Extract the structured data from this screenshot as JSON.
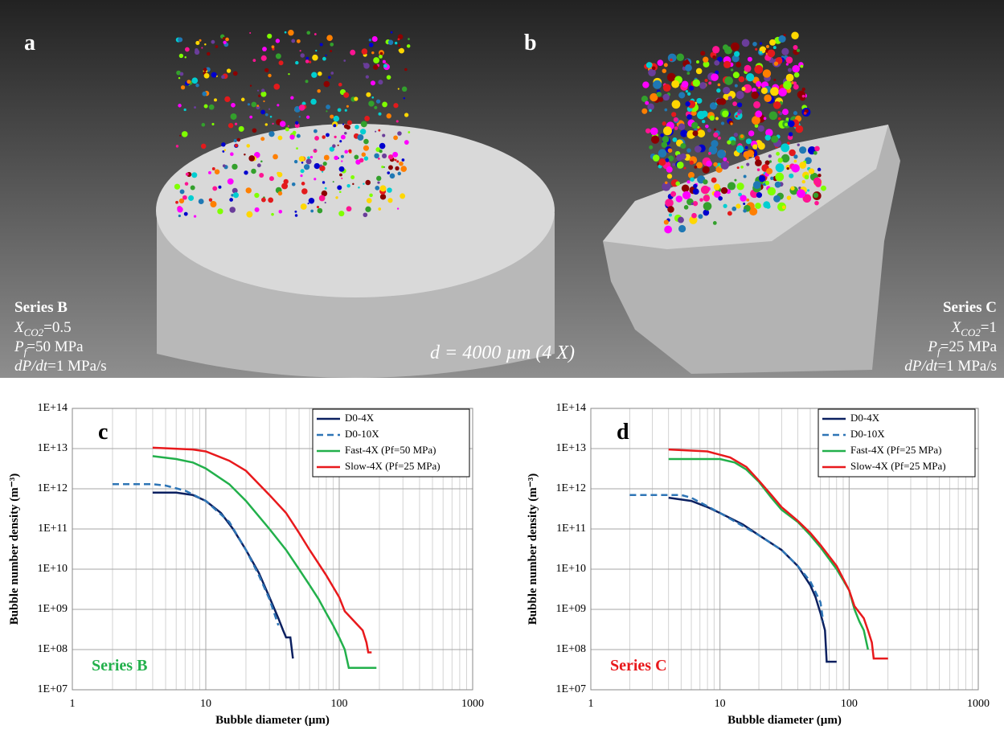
{
  "image_panel": {
    "left": {
      "letter": "a",
      "title": "Series B",
      "params": [
        {
          "symbol": "X",
          "sub": "CO2",
          "value": "=0.5"
        },
        {
          "symbol": "P",
          "sub": "f",
          "value": "=50 MPa"
        },
        {
          "symbol": "dP/dt",
          "value": "=1 MPa/s"
        }
      ]
    },
    "right": {
      "letter": "b",
      "title": "Series C",
      "params": [
        {
          "symbol": "X",
          "sub": "CO2",
          "value": "=1"
        },
        {
          "symbol": "P",
          "sub": "f",
          "value": "=25 MPa"
        },
        {
          "symbol": "dP/dt",
          "value": "=1 MPa/s"
        }
      ]
    },
    "caption": "d = 4000 µm (4 X)"
  },
  "chart_data": [
    {
      "type": "line",
      "panel_label": "c",
      "annotation": {
        "text": "Series B",
        "color": "#22b04b"
      },
      "xlabel": "Bubble diameter (µm)",
      "ylabel": "Bubble number density (m⁻³)",
      "log_x": true,
      "log_y": true,
      "grid": true,
      "legend": "upper right",
      "xlim": [
        1,
        1000
      ],
      "ylim": [
        10000000.0,
        100000000000000.0
      ],
      "xticks": [
        1,
        10,
        100,
        1000
      ],
      "xminorticks": [
        2,
        3,
        4,
        5,
        6,
        7,
        8,
        9,
        20,
        30,
        40,
        50,
        60,
        70,
        80,
        90,
        200,
        300,
        400,
        500,
        600,
        700,
        800,
        900
      ],
      "yticks": [
        {
          "value": 10000000.0,
          "label": "1E+07"
        },
        {
          "value": 100000000.0,
          "label": "1E+08"
        },
        {
          "value": 1000000000.0,
          "label": "1E+09"
        },
        {
          "value": 10000000000.0,
          "label": "1E+10"
        },
        {
          "value": 100000000000.0,
          "label": "1E+11"
        },
        {
          "value": 1000000000000.0,
          "label": "1E+12"
        },
        {
          "value": 10000000000000.0,
          "label": "1E+13"
        },
        {
          "value": 100000000000000.0,
          "label": "1E+14"
        }
      ],
      "series": [
        {
          "name": "D0-4X",
          "color": "#0b2060",
          "dash": false,
          "x": [
            4,
            6,
            8,
            10,
            13,
            16,
            20,
            25,
            30,
            35,
            38,
            40,
            43,
            45
          ],
          "values": [
            800000000000.0,
            800000000000.0,
            700000000000.0,
            500000000000.0,
            250000000000.0,
            100000000000.0,
            30000000000.0,
            8000000000.0,
            2000000000.0,
            600000000.0,
            300000000.0,
            200000000.0,
            200000000.0,
            60000000.0
          ]
        },
        {
          "name": "D0-10X",
          "color": "#2e75b6",
          "dash": true,
          "x": [
            2,
            4,
            5,
            7,
            10,
            15,
            20,
            25,
            30,
            35
          ],
          "values": [
            1300000000000.0,
            1300000000000.0,
            1200000000000.0,
            900000000000.0,
            500000000000.0,
            150000000000.0,
            30000000000.0,
            7000000000.0,
            1800000000.0,
            400000000.0
          ]
        },
        {
          "name": "Fast-4X (Pf=50 MPa)",
          "color": "#22b04b",
          "dash": false,
          "x": [
            4,
            6,
            8,
            10,
            15,
            20,
            30,
            40,
            50,
            60,
            70,
            80,
            90,
            100,
            110,
            118,
            190
          ],
          "values": [
            6500000000000.0,
            5500000000000.0,
            4500000000000.0,
            3200000000000.0,
            1300000000000.0,
            500000000000.0,
            100000000000.0,
            30000000000.0,
            10000000000.0,
            4000000000.0,
            1800000000.0,
            800000000.0,
            400000000.0,
            200000000.0,
            100000000.0,
            35000000.0,
            35000000.0
          ]
        },
        {
          "name": "Slow-4X (Pf=25 MPa)",
          "color": "#e8191c",
          "dash": false,
          "x": [
            4,
            8,
            10,
            15,
            20,
            30,
            40,
            50,
            60,
            80,
            100,
            110,
            130,
            150,
            160,
            165,
            175
          ],
          "values": [
            10500000000000.0,
            9500000000000.0,
            8500000000000.0,
            5000000000000.0,
            2800000000000.0,
            700000000000.0,
            250000000000.0,
            80000000000.0,
            30000000000.0,
            7000000000.0,
            2000000000.0,
            900000000.0,
            500000000.0,
            300000000.0,
            150000000.0,
            85000000.0,
            85000000.0
          ]
        }
      ]
    },
    {
      "type": "line",
      "panel_label": "d",
      "annotation": {
        "text": "Series C",
        "color": "#e8191c"
      },
      "xlabel": "Bubble diameter (µm)",
      "ylabel": "Bubble number density (m⁻³)",
      "log_x": true,
      "log_y": true,
      "grid": true,
      "legend": "upper right",
      "xlim": [
        1,
        1000
      ],
      "ylim": [
        10000000.0,
        100000000000000.0
      ],
      "xticks": [
        1,
        10,
        100,
        1000
      ],
      "xminorticks": [
        2,
        3,
        4,
        5,
        6,
        7,
        8,
        9,
        20,
        30,
        40,
        50,
        60,
        70,
        80,
        90,
        200,
        300,
        400,
        500,
        600,
        700,
        800,
        900
      ],
      "yticks": [
        {
          "value": 10000000.0,
          "label": "1E+07"
        },
        {
          "value": 100000000.0,
          "label": "1E+08"
        },
        {
          "value": 1000000000.0,
          "label": "1E+09"
        },
        {
          "value": 10000000000.0,
          "label": "1E+10"
        },
        {
          "value": 100000000000.0,
          "label": "1E+11"
        },
        {
          "value": 1000000000000.0,
          "label": "1E+12"
        },
        {
          "value": 10000000000000.0,
          "label": "1E+13"
        },
        {
          "value": 100000000000000.0,
          "label": "1E+14"
        }
      ],
      "series": [
        {
          "name": "D0-4X",
          "color": "#0b2060",
          "dash": false,
          "x": [
            4,
            6,
            8,
            10,
            15,
            20,
            30,
            40,
            50,
            55,
            60,
            65,
            67,
            80
          ],
          "values": [
            600000000000.0,
            500000000000.0,
            350000000000.0,
            250000000000.0,
            130000000000.0,
            70000000000.0,
            30000000000.0,
            12000000000.0,
            4000000000.0,
            2000000000.0,
            800000000.0,
            300000000.0,
            50000000.0,
            50000000.0
          ]
        },
        {
          "name": "D0-10X",
          "color": "#2e75b6",
          "dash": true,
          "x": [
            2,
            5,
            6,
            10,
            20,
            30,
            40,
            50,
            60,
            63
          ],
          "values": [
            700000000000.0,
            700000000000.0,
            600000000000.0,
            250000000000.0,
            70000000000.0,
            30000000000.0,
            12000000000.0,
            5000000000.0,
            1500000000.0,
            500000000.0
          ]
        },
        {
          "name": "Fast-4X (Pf=25 MPa)",
          "color": "#22b04b",
          "dash": false,
          "x": [
            4,
            10,
            13,
            16,
            20,
            25,
            30,
            40,
            50,
            60,
            80,
            100,
            110,
            120,
            130,
            140
          ],
          "values": [
            5500000000000.0,
            5500000000000.0,
            4500000000000.0,
            3000000000000.0,
            1500000000000.0,
            600000000000.0,
            300000000000.0,
            150000000000.0,
            70000000000.0,
            35000000000.0,
            10000000000.0,
            3000000000.0,
            1000000000.0,
            500000000.0,
            300000000.0,
            100000000.0
          ]
        },
        {
          "name": "Slow-4X (Pf=25 MPa)",
          "color": "#e8191c",
          "dash": false,
          "x": [
            4,
            8,
            12,
            16,
            20,
            25,
            30,
            40,
            50,
            60,
            80,
            100,
            110,
            130,
            140,
            150,
            155,
            200
          ],
          "values": [
            9500000000000.0,
            8500000000000.0,
            6000000000000.0,
            3500000000000.0,
            1600000000000.0,
            700000000000.0,
            350000000000.0,
            160000000000.0,
            80000000000.0,
            40000000000.0,
            12000000000.0,
            3000000000.0,
            1200000000.0,
            600000000.0,
            300000000.0,
            150000000.0,
            60000000.0,
            60000000.0
          ]
        }
      ]
    }
  ]
}
